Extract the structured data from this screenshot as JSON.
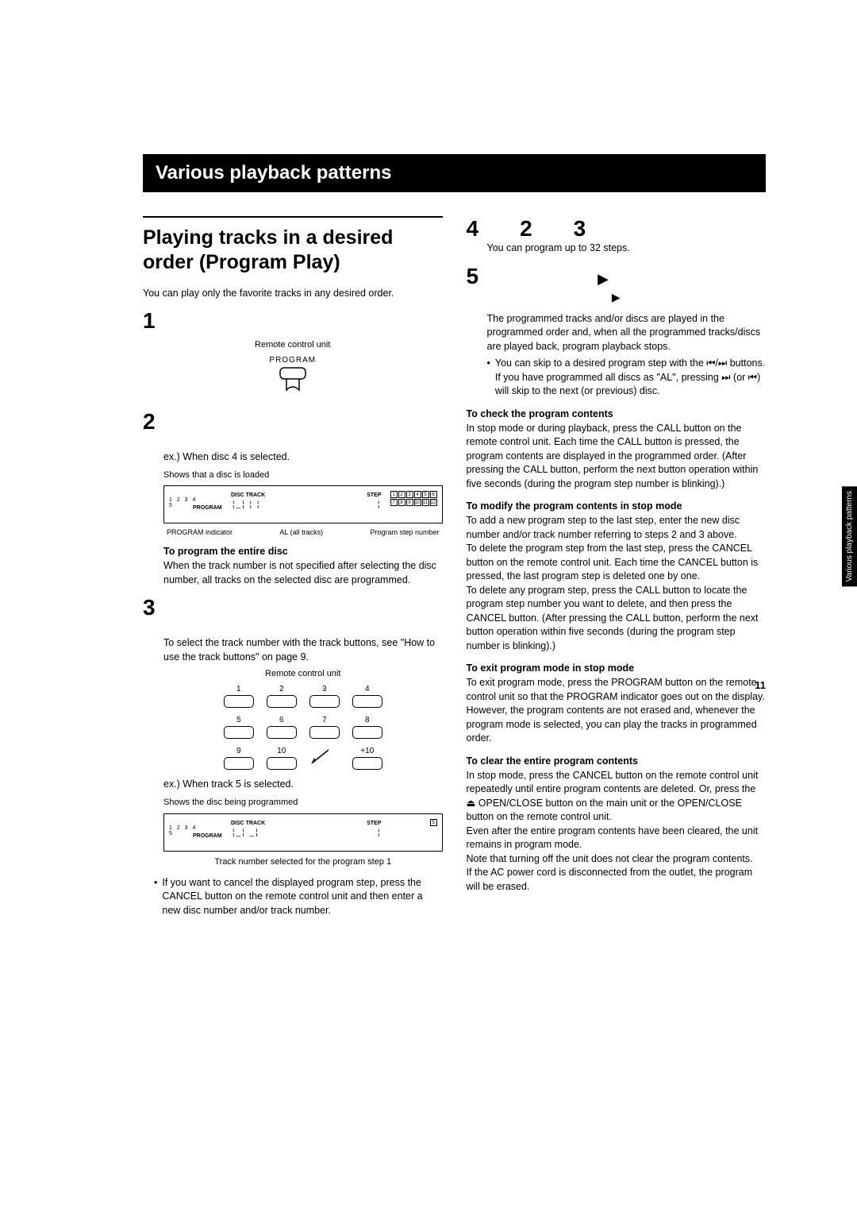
{
  "banner": "Various playback patterns",
  "sideTab": "Various playback patterns",
  "pageNumber": "11",
  "left": {
    "title": "Playing tracks in a desired order (Program Play)",
    "intro": "You can play only the favorite tracks in any desired order.",
    "step1": {
      "num": "1"
    },
    "remoteLabel": "Remote control unit",
    "programLabel": "PROGRAM",
    "step2": {
      "num": "2",
      "ex": "ex.) When disc 4 is selected.",
      "topCallout": "Shows that a disc is loaded",
      "dp": {
        "discs": "1  2  3  4",
        "disc5": "5",
        "program": "PROGRAM",
        "discTrack": "DISC    TRACK",
        "step": "STEP",
        "grid": [
          "1",
          "2",
          "3",
          "4",
          "5",
          "6",
          "7",
          "8",
          "9",
          "10",
          "11",
          "12"
        ]
      },
      "callouts": [
        "PROGRAM indicator",
        "AL (all tracks)",
        "Program step number"
      ],
      "subBold": "To program the entire disc",
      "subBody": "When the track number is not specified after selecting the disc number, all tracks on the selected disc are programmed."
    },
    "step3": {
      "num": "3",
      "body": "To select the track number with the track buttons, see \"How to use the track buttons\" on page 9.",
      "remoteLabel": "Remote control unit",
      "keypad": [
        "1",
        "2",
        "3",
        "4",
        "5",
        "6",
        "7",
        "8",
        "9",
        "10",
        "",
        "+10"
      ],
      "ex": "ex.) When track 5 is selected.",
      "topCallout": "Shows the disc being programmed",
      "dp": {
        "discs": "1  2  3  4",
        "disc5": "5",
        "program": "PROGRAM",
        "discTrack": "DISC    TRACK",
        "step": "STEP",
        "gridSingle": "5"
      },
      "bottomCallout": "Track number selected for the program step 1",
      "bullet": "If you want to cancel the displayed program step, press the CANCEL button on the remote control unit and then enter a new disc number and/or track number."
    }
  },
  "right": {
    "step4": {
      "num": "4",
      "n2": "2",
      "n3": "3",
      "body": "You can program up to 32 steps."
    },
    "step5": {
      "num": "5",
      "play": "▶",
      "body": "The programmed tracks and/or discs are played in the programmed order and, when all the programmed tracks/discs are played back, program playback stops.",
      "bul1a": "You can skip to a desired program step with the",
      "bul1b": " buttons.",
      "bul2a": "If you have programmed all discs as \"AL\", pressing ",
      "bul2b": " (or ",
      "bul2c": ") will skip to the next (or previous) disc.",
      "skipIcons": "⏮/⏭",
      "fwd": "⏭",
      "rew": "⏮"
    },
    "check": {
      "h": "To check the program contents",
      "b": "In stop mode or during playback, press the CALL button on the remote control unit. Each time the CALL button is pressed, the program contents are displayed in the programmed order. (After pressing the CALL button, perform the next button operation within five seconds (during the program step number is blinking).)"
    },
    "modify": {
      "h": "To modify the program contents in stop mode",
      "b1": "To add a new program step to the last step, enter the new disc number and/or track number referring to steps 2 and 3 above.",
      "b2": "To delete the program step from the last step, press the CANCEL button on the remote control unit. Each time the CANCEL button is pressed, the last program step is deleted one by one.",
      "b3": "To delete any program step, press the CALL button to locate the program step number you want to delete, and then press the CANCEL button. (After pressing the CALL button, perform the next button operation within five seconds (during the program step number is blinking).)"
    },
    "exit": {
      "h": "To exit program mode in stop mode",
      "b": "To exit program mode, press the PROGRAM button on the remote control unit so that the PROGRAM indicator goes out on the display. However, the program contents are not erased and, whenever the program mode is selected, you can play the tracks in programmed order."
    },
    "clear": {
      "h": "To clear the entire program contents",
      "b1a": "In stop mode, press the CANCEL button on the remote control unit repeatedly until entire program contents are deleted. Or, press the ",
      "eject": "⏏",
      "b1b": " OPEN/CLOSE button on the main unit or the OPEN/CLOSE button on the remote control unit.",
      "b2": "Even after the entire program contents have been cleared, the unit remains in program mode.",
      "b3": "Note that turning off the unit does not clear the program contents.",
      "b4": "If the AC power cord is disconnected from the outlet, the program will be erased."
    }
  }
}
